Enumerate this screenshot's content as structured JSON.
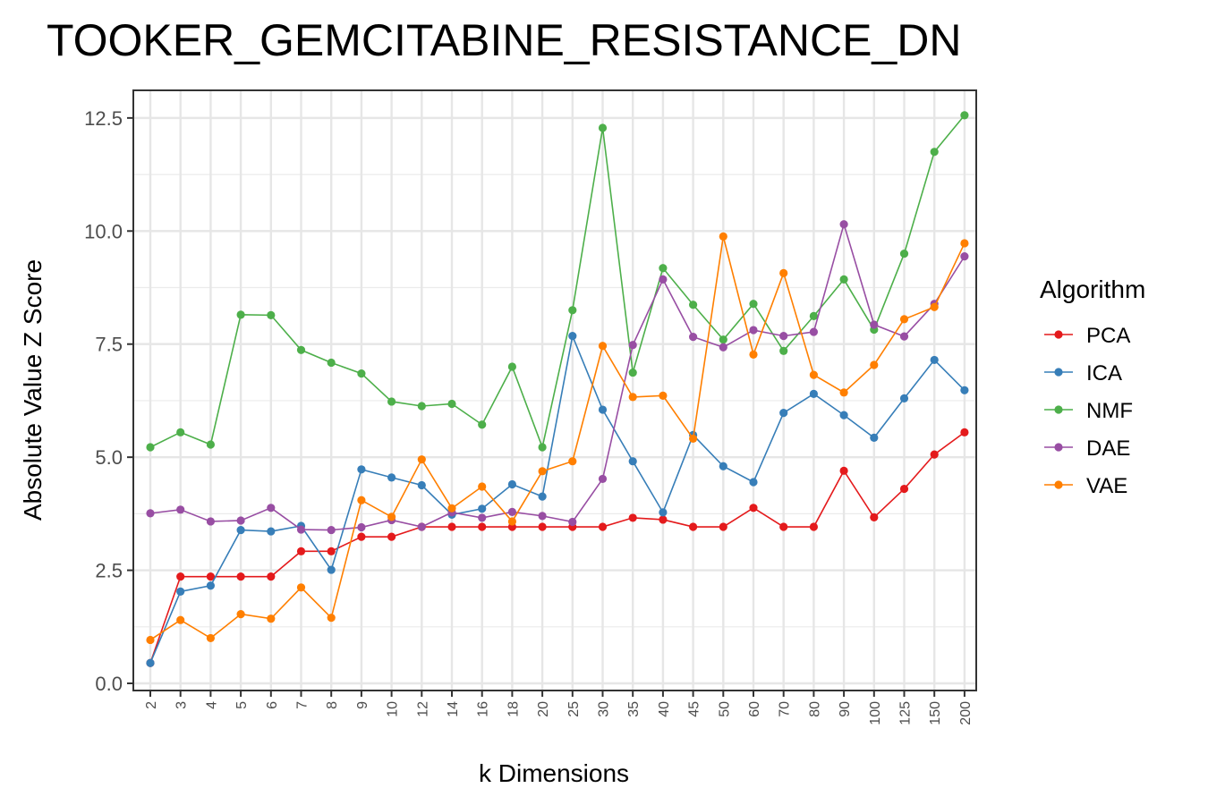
{
  "chart_data": {
    "type": "line",
    "title": "TOOKER_GEMCITABINE_RESISTANCE_DN",
    "xlabel": "k Dimensions",
    "ylabel": "Absolute Value Z Score",
    "ylim": [
      0,
      12.5
    ],
    "yticks": [
      "0.0",
      "2.5",
      "5.0",
      "7.5",
      "10.0",
      "12.5"
    ],
    "grid": true,
    "legend_title": "Algorithm",
    "legend_position": "right",
    "categories": [
      "2",
      "3",
      "4",
      "5",
      "6",
      "7",
      "8",
      "9",
      "10",
      "12",
      "14",
      "16",
      "18",
      "20",
      "25",
      "30",
      "35",
      "40",
      "45",
      "50",
      "60",
      "70",
      "80",
      "90",
      "100",
      "125",
      "150",
      "200"
    ],
    "series": [
      {
        "name": "PCA",
        "color": "#E41A1C",
        "values": [
          0.45,
          2.36,
          2.36,
          2.36,
          2.36,
          2.92,
          2.92,
          3.24,
          3.24,
          3.46,
          3.46,
          3.46,
          3.46,
          3.46,
          3.46,
          3.46,
          3.66,
          3.62,
          3.46,
          3.46,
          3.88,
          3.46,
          3.46,
          4.7,
          3.67,
          4.3,
          5.06,
          5.55
        ]
      },
      {
        "name": "ICA",
        "color": "#377EB8",
        "values": [
          0.45,
          2.03,
          2.16,
          3.39,
          3.36,
          3.48,
          2.51,
          4.73,
          4.55,
          4.38,
          3.73,
          3.86,
          4.4,
          4.13,
          7.68,
          6.05,
          4.91,
          3.78,
          5.49,
          4.8,
          4.45,
          5.98,
          6.4,
          5.93,
          5.43,
          6.3,
          7.15,
          6.48
        ]
      },
      {
        "name": "NMF",
        "color": "#4DAF4A",
        "values": [
          5.22,
          5.55,
          5.28,
          8.15,
          8.14,
          7.37,
          7.09,
          6.85,
          6.23,
          6.13,
          6.18,
          5.72,
          7.0,
          5.22,
          8.25,
          12.28,
          6.87,
          9.18,
          8.37,
          7.6,
          8.39,
          7.35,
          8.12,
          8.93,
          7.82,
          9.5,
          11.75,
          12.56
        ]
      },
      {
        "name": "DAE",
        "color": "#984EA3",
        "values": [
          3.76,
          3.84,
          3.58,
          3.6,
          3.88,
          3.4,
          3.39,
          3.45,
          3.61,
          3.46,
          3.78,
          3.66,
          3.79,
          3.7,
          3.57,
          4.52,
          7.48,
          8.93,
          7.66,
          7.43,
          7.81,
          7.68,
          7.77,
          10.15,
          7.93,
          7.67,
          8.39,
          9.44
        ]
      },
      {
        "name": "VAE",
        "color": "#FF7F00",
        "values": [
          0.96,
          1.4,
          1.0,
          1.53,
          1.43,
          2.12,
          1.45,
          4.05,
          3.68,
          4.95,
          3.87,
          4.35,
          3.58,
          4.69,
          4.91,
          7.46,
          6.33,
          6.36,
          5.41,
          9.88,
          7.27,
          9.07,
          6.82,
          6.43,
          7.04,
          8.05,
          8.32,
          9.73
        ]
      }
    ]
  }
}
